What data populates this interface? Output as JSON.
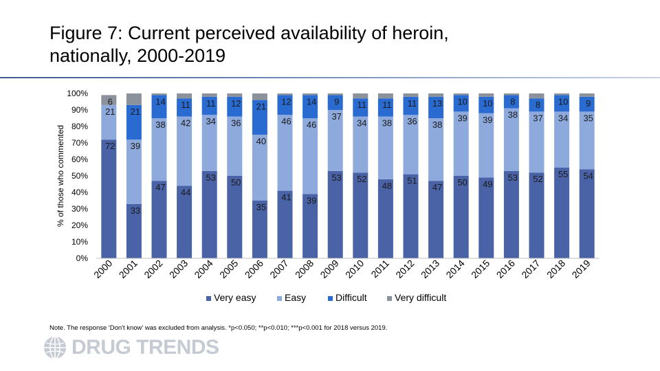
{
  "title_line1": "Figure 7: Current perceived availability of heroin,",
  "title_line2": "nationally, 2000-2019",
  "note": "Note. The response 'Don't know' was excluded from analysis. *p<0.050; **p<0.010; ***p<0.001 for 2018 versus 2019.",
  "logo": {
    "icon": "globe-icon",
    "text": "DRUG TRENDS"
  },
  "chart_data": {
    "type": "bar",
    "stacked": true,
    "ylabel": "% of those who commented",
    "ylim": [
      0,
      100
    ],
    "yticks": [
      "0%",
      "10%",
      "20%",
      "30%",
      "40%",
      "50%",
      "60%",
      "70%",
      "80%",
      "90%",
      "100%"
    ],
    "categories": [
      "2000",
      "2001",
      "2002",
      "2003",
      "2004",
      "2005",
      "2006",
      "2007",
      "2008",
      "2009",
      "2010",
      "2011",
      "2012",
      "2013",
      "2014",
      "2015",
      "2016",
      "2017",
      "2018",
      "2019"
    ],
    "series": [
      {
        "name": "Very easy",
        "color": "#4a62a6",
        "values": [
          72,
          33,
          47,
          44,
          53,
          50,
          35,
          41,
          39,
          53,
          52,
          48,
          51,
          47,
          50,
          49,
          53,
          52,
          55,
          54
        ],
        "labels": [
          "72",
          "33",
          "47",
          "44",
          "53",
          "50",
          "35",
          "41",
          "39",
          "53",
          "52",
          "48",
          "51",
          "47",
          "50",
          "49",
          "53",
          "52",
          "55",
          "54"
        ]
      },
      {
        "name": "Easy",
        "color": "#8ea9db",
        "values": [
          21,
          39,
          38,
          42,
          34,
          36,
          40,
          46,
          46,
          37,
          34,
          38,
          36,
          38,
          39,
          39,
          38,
          37,
          34,
          35
        ],
        "labels": [
          "21",
          "39",
          "38",
          "42",
          "34",
          "36",
          "40",
          "46",
          "46",
          "37",
          "34",
          "38",
          "36",
          "38",
          "39",
          "39",
          "38",
          "37",
          "34",
          "35"
        ]
      },
      {
        "name": "Difficult",
        "color": "#2a6bd1",
        "values": [
          0,
          21,
          14,
          11,
          11,
          12,
          21,
          12,
          14,
          9,
          11,
          11,
          11,
          13,
          10,
          10,
          8,
          8,
          10,
          9
        ],
        "labels": [
          "",
          "21",
          "14",
          "11",
          "11",
          "12",
          "21",
          "12",
          "14",
          "9",
          "11",
          "11",
          "11",
          "13",
          "10",
          "10",
          "8",
          "8",
          "10",
          "9"
        ]
      },
      {
        "name": "Very difficult",
        "color": "#8c929c",
        "values": [
          6,
          7,
          1,
          3,
          2,
          2,
          4,
          1,
          1,
          1,
          3,
          3,
          2,
          2,
          1,
          2,
          1,
          3,
          1,
          2
        ],
        "labels": [
          "6",
          "",
          "",
          "",
          "",
          "",
          "",
          "",
          "",
          "",
          "",
          "",
          "",
          "",
          "",
          "",
          "",
          "",
          "",
          ""
        ]
      }
    ],
    "legend_position": "bottom",
    "grid": false
  }
}
